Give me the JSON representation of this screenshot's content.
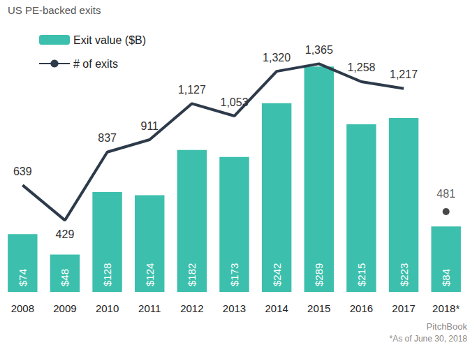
{
  "chart_data": {
    "type": "bar",
    "title": "US PE-backed exits",
    "categories": [
      "2008",
      "2009",
      "2010",
      "2011",
      "2012",
      "2013",
      "2014",
      "2015",
      "2016",
      "2017",
      "2018*"
    ],
    "series": [
      {
        "name": "Exit value ($B)",
        "type": "bar",
        "color": "#3DBFAD",
        "values": [
          74,
          48,
          128,
          124,
          182,
          173,
          242,
          289,
          215,
          223,
          84
        ],
        "value_labels": [
          "$74",
          "$48",
          "$128",
          "$124",
          "$182",
          "$173",
          "$242",
          "$289",
          "$215",
          "$223",
          "$84"
        ]
      },
      {
        "name": "# of exits",
        "type": "line",
        "axis": "y2",
        "color": "#2D3A4A",
        "line_style": "solid",
        "values": [
          639,
          429,
          837,
          911,
          1127,
          1053,
          1320,
          1365,
          1258,
          1217,
          null
        ],
        "value_labels": [
          "639",
          "429",
          "837",
          "911",
          "1,127",
          "1,053",
          "1,320",
          "1,365",
          "1,258",
          "1,217",
          null
        ]
      },
      {
        "type": "scatter",
        "axis": "y2",
        "color": "#1A1A1A",
        "marker": "circle",
        "values": [
          null,
          null,
          null,
          null,
          null,
          null,
          null,
          null,
          null,
          null,
          481
        ]
      }
    ],
    "ylim": [
      0,
      300
    ],
    "yticks": [
      0,
      100,
      200,
      300
    ],
    "y2lim": [
      0,
      1400
    ],
    "y2ticks": [
      0,
      350,
      700,
      1050,
      1400
    ],
    "grid": false,
    "legend": "top-left",
    "data_labels": true,
    "tick_labels": "x",
    "annotations": [
      "PitchBook",
      "*As of June 30, 2018"
    ]
  }
}
